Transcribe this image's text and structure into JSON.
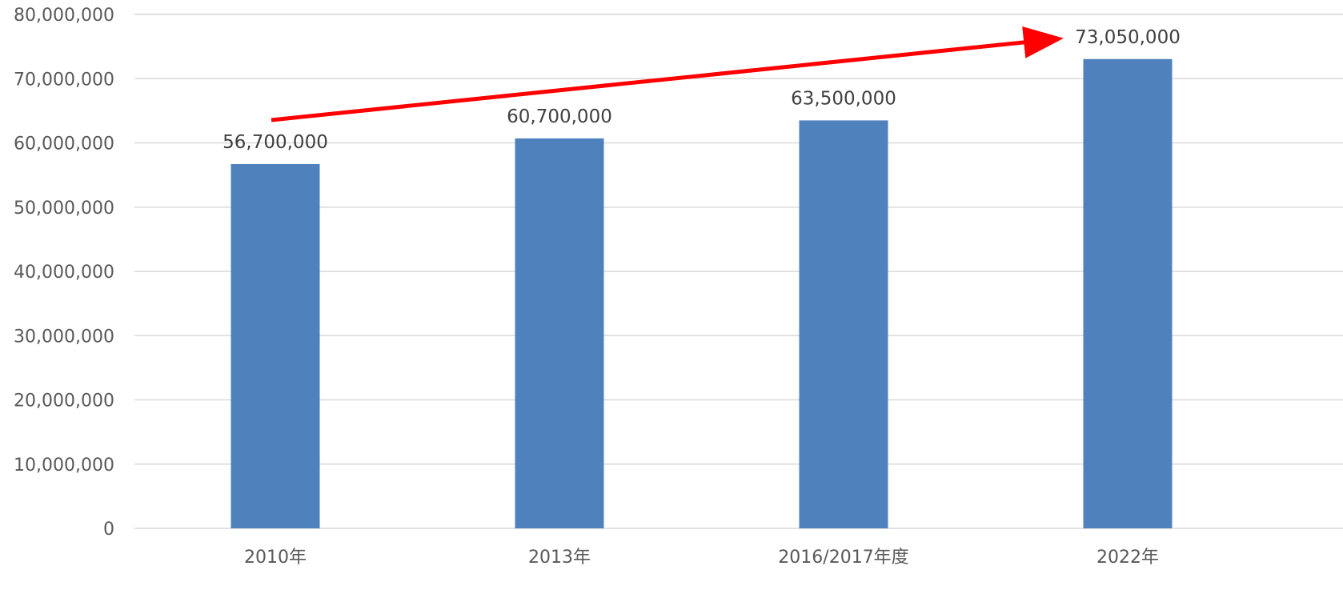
{
  "chart_data": {
    "type": "bar",
    "categories": [
      "2010年",
      "2013年",
      "2016/2017年度",
      "2022年"
    ],
    "values": [
      56700000,
      60700000,
      63500000,
      73050000
    ],
    "data_labels": [
      "56,700,000",
      "60,700,000",
      "63,500,000",
      "73,050,000"
    ],
    "ylim": [
      0,
      80000000
    ],
    "ytick_labels": [
      "0",
      "10,000,000",
      "20,000,000",
      "30,000,000",
      "40,000,000",
      "50,000,000",
      "60,000,000",
      "70,000,000",
      "80,000,000"
    ],
    "grid": true,
    "legend": "none",
    "bar_color": "#4f81bd",
    "trend_arrow": {
      "from_category": 0,
      "to_category": 3,
      "color": "#ff0000"
    }
  }
}
